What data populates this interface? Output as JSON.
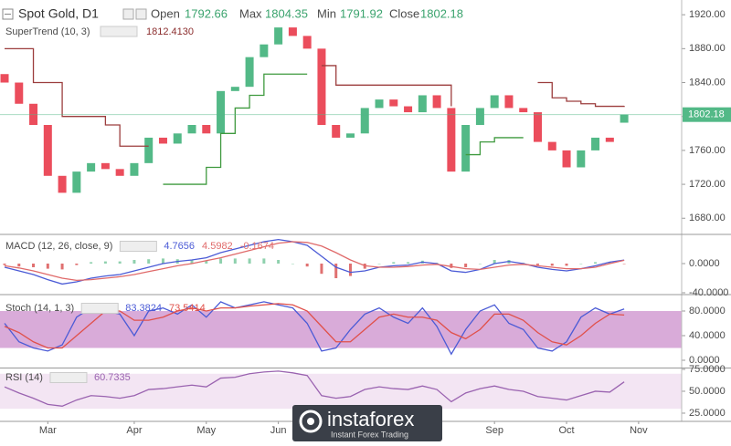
{
  "chart_data": {
    "type": "candlestick",
    "legend": {
      "symbol": "Spot Gold, D1",
      "open_label": "Open",
      "max_label": "Max",
      "high": 1804.35,
      "min_label": "Min",
      "low": 1791.92,
      "close_label": "Close"
    },
    "categories": [
      null,
      null,
      null,
      "Mar",
      null,
      null,
      null,
      null,
      null,
      "Apr",
      null,
      null,
      null,
      null,
      "May",
      null,
      null,
      null,
      null,
      "Jun",
      null,
      null,
      null,
      null,
      null,
      null,
      null,
      null,
      null,
      null,
      null,
      null,
      null,
      null,
      "Sep",
      null,
      null,
      null,
      null,
      "Oct",
      null,
      null,
      null,
      null,
      "Nov"
    ],
    "open": [
      1850,
      1840,
      1815,
      1790,
      1730,
      1710,
      1735,
      1745,
      1738,
      1730,
      1745,
      1775,
      1768,
      1780,
      1790,
      1780,
      1830,
      1835,
      1870,
      1885,
      1905,
      1895,
      1880,
      1790,
      1775,
      1780,
      1810,
      1820,
      1812,
      1805,
      1825,
      1810,
      1735,
      1790,
      1810,
      1825,
      1810,
      1805,
      1770,
      1760,
      1740,
      1760,
      1775,
      1792.66,
      null
    ],
    "close": [
      1840,
      1815,
      1790,
      1730,
      1710,
      1735,
      1745,
      1738,
      1730,
      1745,
      1775,
      1768,
      1780,
      1790,
      1780,
      1830,
      1835,
      1870,
      1885,
      1905,
      1895,
      1880,
      1790,
      1775,
      1780,
      1810,
      1820,
      1812,
      1805,
      1825,
      1810,
      1735,
      1790,
      1810,
      1825,
      1810,
      1805,
      1770,
      1760,
      1740,
      1760,
      1775,
      1770,
      1802.18,
      null
    ],
    "colors": {
      "up": "#53b987",
      "down": "#eb4d5c"
    },
    "ylim": [
      1662,
      1932
    ],
    "yticks": [
      {
        "value": 1680,
        "label": "1680.00"
      },
      {
        "value": 1720,
        "label": "1720.00"
      },
      {
        "value": 1760,
        "label": "1760.00"
      },
      {
        "value": 1800,
        "label": "1800.00"
      },
      {
        "value": 1840,
        "label": "1840.00"
      },
      {
        "value": 1880,
        "label": "1880.00"
      },
      {
        "value": 1920,
        "label": "1920.00"
      }
    ],
    "grid": false,
    "supertrend": {
      "label": "SuperTrend (10, 3)",
      "readout": "1812.4130",
      "step": true,
      "series": [
        {
          "color": "#9c3d3d",
          "values": [
            1880,
            1880,
            1840,
            1840,
            1800,
            1800,
            1800,
            1790,
            1765,
            1765,
            1765,
            null,
            null,
            null,
            null,
            null,
            null,
            null,
            null,
            null,
            null,
            null,
            1860,
            1837,
            1837,
            1837,
            1837,
            1837,
            1837,
            1837,
            1837,
            1812,
            null,
            null,
            null,
            null,
            null,
            1840,
            1822,
            1818,
            1815,
            1812,
            1812,
            1812.413,
            null
          ]
        },
        {
          "color": "#3f9a3f",
          "values": [
            null,
            null,
            null,
            null,
            null,
            null,
            null,
            null,
            null,
            null,
            null,
            1720,
            1720,
            1720,
            1740,
            1780,
            1810,
            1825,
            1850,
            1850,
            1850,
            1850,
            null,
            null,
            null,
            null,
            null,
            null,
            null,
            null,
            null,
            null,
            1755,
            1770,
            1775,
            1775,
            1775,
            null,
            null,
            null,
            null,
            null,
            null,
            null,
            null
          ]
        }
      ]
    },
    "indicators": [
      {
        "type": "macd",
        "label": "MACD (12, 26, close, 9)",
        "ylim": [
          -41.25,
          38.75
        ],
        "yticks": [
          {
            "value": -40,
            "label": "-40.0000"
          },
          {
            "value": 0,
            "label": "0.0000"
          }
        ],
        "series": [
          {
            "color": "#4b5bd6",
            "values": [
              -5,
              -10,
              -15,
              -22,
              -28,
              -25,
              -20,
              -17,
              -15,
              -10,
              -5,
              0,
              3,
              5,
              8,
              15,
              20,
              25,
              30,
              33,
              30,
              25,
              10,
              -5,
              -12,
              -10,
              -5,
              -3,
              -2,
              2,
              0,
              -10,
              -12,
              -8,
              0,
              3,
              0,
              -5,
              -8,
              -10,
              -7,
              -3,
              2,
              4.7656,
              null
            ]
          },
          {
            "color": "#e06a6a",
            "values": [
              -3,
              -6,
              -10,
              -15,
              -20,
              -23,
              -22,
              -20,
              -18,
              -15,
              -11,
              -7,
              -3,
              0,
              4,
              8,
              13,
              18,
              23,
              28,
              30,
              29,
              24,
              15,
              5,
              -3,
              -5,
              -5,
              -4,
              -2,
              -1,
              -4,
              -7,
              -8,
              -5,
              -2,
              -1,
              -3,
              -5,
              -7,
              -7,
              -5,
              0,
              4.5982,
              null
            ]
          }
        ],
        "histogram": {
          "colors": {
            "up": "#8fd1ae",
            "down": "#e07070"
          },
          "values": [
            -2,
            -4,
            -5,
            -7,
            -8,
            -2,
            2,
            3,
            3,
            5,
            6,
            7,
            6,
            5,
            4,
            7,
            7,
            7,
            7,
            5,
            0,
            -4,
            -14,
            -20,
            -17,
            -7,
            0,
            2,
            2,
            4,
            1,
            -6,
            -5,
            0,
            5,
            5,
            1,
            -2,
            -3,
            -3,
            0,
            2,
            2,
            -0.1674,
            null
          ]
        }
      },
      {
        "type": "line",
        "label": "Stoch (14, 1, 3)",
        "ylim": [
          -11.85,
          105.2
        ],
        "band": [
          20,
          80
        ],
        "band_color": "#cc8fcc",
        "yticks": [
          {
            "value": 0,
            "label": "0.0000"
          },
          {
            "value": 40,
            "label": "40.0000"
          },
          {
            "value": 80,
            "label": "80.0000"
          }
        ],
        "series": [
          {
            "color": "#4b5bd6",
            "values": [
              60,
              30,
              20,
              15,
              25,
              70,
              85,
              80,
              75,
              40,
              80,
              85,
              75,
              90,
              70,
              95,
              85,
              90,
              95,
              90,
              85,
              60,
              15,
              20,
              50,
              75,
              85,
              70,
              60,
              85,
              55,
              10,
              50,
              80,
              90,
              60,
              50,
              20,
              15,
              30,
              70,
              85,
              75,
              83.3824,
              null
            ]
          },
          {
            "color": "#e0504a",
            "values": [
              55,
              45,
              30,
              20,
              20,
              40,
              60,
              80,
              80,
              65,
              65,
              70,
              80,
              85,
              80,
              85,
              85,
              88,
              90,
              92,
              90,
              80,
              55,
              30,
              30,
              50,
              70,
              75,
              70,
              70,
              65,
              45,
              35,
              50,
              75,
              75,
              65,
              45,
              30,
              25,
              40,
              60,
              75,
              73.5414,
              null
            ]
          }
        ]
      },
      {
        "type": "line",
        "label": "RSI (14)",
        "ylim": [
          15.6,
          76
        ],
        "band": [
          30,
          70
        ],
        "band_color": "#efdcef",
        "yticks": [
          {
            "value": 25,
            "label": "25.0000"
          },
          {
            "value": 50,
            "label": "50.0000"
          },
          {
            "value": 75,
            "label": "75.0000"
          }
        ],
        "series": [
          {
            "color": "#9a63b0",
            "values": [
              55,
              48,
              42,
              35,
              33,
              40,
              45,
              44,
              42,
              45,
              52,
              53,
              55,
              57,
              55,
              65,
              66,
              70,
              72,
              73,
              71,
              68,
              45,
              42,
              44,
              52,
              55,
              53,
              52,
              56,
              52,
              38,
              48,
              53,
              56,
              52,
              50,
              44,
              42,
              40,
              45,
              50,
              49,
              60.7335,
              null
            ]
          }
        ]
      }
    ]
  },
  "watermark": {
    "name": "instaforex",
    "tagline": "Instant Forex Trading"
  }
}
